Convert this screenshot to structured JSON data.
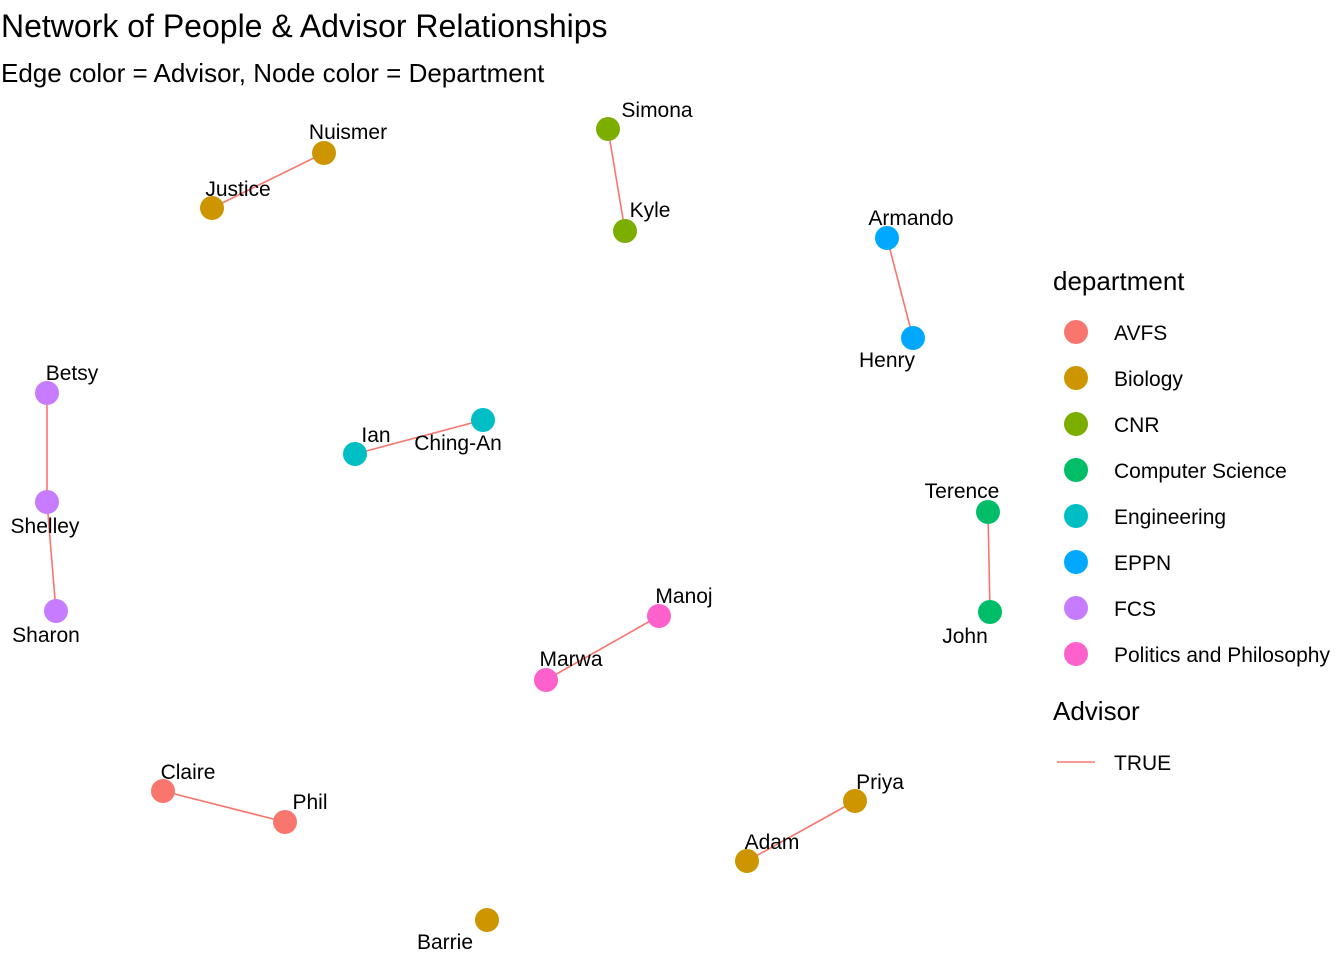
{
  "title": "Network of People & Advisor Relationships",
  "subtitle": "Edge color = Advisor, Node color = Department",
  "colors": {
    "AVFS": "#F8766D",
    "Biology": "#CD9600",
    "CNR": "#7CAE00",
    "Computer Science": "#00BE67",
    "Engineering": "#00BFC4",
    "EPPN": "#00A9FF",
    "FCS": "#C77CFF",
    "Politics and Philosophy": "#FF61CC",
    "edge": "#F8766D"
  },
  "nodes": [
    {
      "id": "Nuismer",
      "label": "Nuismer",
      "department": "Biology"
    },
    {
      "id": "Justice",
      "label": "Justice",
      "department": "Biology"
    },
    {
      "id": "Simona",
      "label": "Simona",
      "department": "CNR"
    },
    {
      "id": "Kyle",
      "label": "Kyle",
      "department": "CNR"
    },
    {
      "id": "Armando",
      "label": "Armando",
      "department": "EPPN"
    },
    {
      "id": "Henry",
      "label": "Henry",
      "department": "EPPN"
    },
    {
      "id": "Betsy",
      "label": "Betsy",
      "department": "FCS"
    },
    {
      "id": "Shelley",
      "label": "Shelley",
      "department": "FCS"
    },
    {
      "id": "Sharon",
      "label": "Sharon",
      "department": "FCS"
    },
    {
      "id": "Ian",
      "label": "Ian",
      "department": "Engineering"
    },
    {
      "id": "Ching-An",
      "label": "Ching-An",
      "department": "Engineering"
    },
    {
      "id": "Terence",
      "label": "Terence",
      "department": "Computer Science"
    },
    {
      "id": "John",
      "label": "John",
      "department": "Computer Science"
    },
    {
      "id": "Manoj",
      "label": "Manoj",
      "department": "Politics and Philosophy"
    },
    {
      "id": "Marwa",
      "label": "Marwa",
      "department": "Politics and Philosophy"
    },
    {
      "id": "Claire",
      "label": "Claire",
      "department": "AVFS"
    },
    {
      "id": "Phil",
      "label": "Phil",
      "department": "AVFS"
    },
    {
      "id": "Priya",
      "label": "Priya",
      "department": "Biology"
    },
    {
      "id": "Adam",
      "label": "Adam",
      "department": "Biology"
    },
    {
      "id": "Barrie",
      "label": "Barrie",
      "department": "Biology"
    }
  ],
  "edges": [
    {
      "from": "Nuismer",
      "to": "Justice",
      "advisor": "TRUE"
    },
    {
      "from": "Simona",
      "to": "Kyle",
      "advisor": "TRUE"
    },
    {
      "from": "Armando",
      "to": "Henry",
      "advisor": "TRUE"
    },
    {
      "from": "Betsy",
      "to": "Shelley",
      "advisor": "TRUE"
    },
    {
      "from": "Shelley",
      "to": "Sharon",
      "advisor": "TRUE"
    },
    {
      "from": "Ian",
      "to": "Ching-An",
      "advisor": "TRUE"
    },
    {
      "from": "Terence",
      "to": "John",
      "advisor": "TRUE"
    },
    {
      "from": "Manoj",
      "to": "Marwa",
      "advisor": "TRUE"
    },
    {
      "from": "Claire",
      "to": "Phil",
      "advisor": "TRUE"
    },
    {
      "from": "Priya",
      "to": "Adam",
      "advisor": "TRUE"
    }
  ],
  "legend": {
    "department_title": "department",
    "departments": [
      "AVFS",
      "Biology",
      "CNR",
      "Computer Science",
      "Engineering",
      "EPPN",
      "FCS",
      "Politics and Philosophy"
    ],
    "advisor_title": "Advisor",
    "advisor_entries": [
      "TRUE"
    ]
  }
}
